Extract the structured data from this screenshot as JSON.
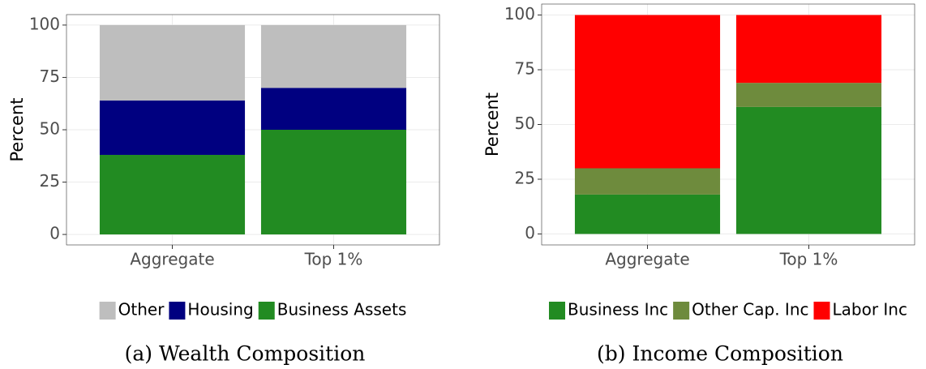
{
  "chart_data": [
    {
      "type": "stacked-bar",
      "caption": "(a) Wealth Composition",
      "ylabel": "Percent",
      "categories": [
        "Aggregate",
        "Top 1%"
      ],
      "series": [
        {
          "name": "Business Assets",
          "color": "#228b22",
          "values": [
            38,
            50
          ]
        },
        {
          "name": "Housing",
          "color": "#000080",
          "values": [
            26,
            20
          ]
        },
        {
          "name": "Other",
          "color": "#bebebe",
          "values": [
            36,
            30
          ]
        }
      ],
      "legend_order": "reverse",
      "ylim": [
        -5,
        105
      ],
      "yticks": [
        0,
        25,
        50,
        75,
        100
      ],
      "grid": true
    },
    {
      "type": "stacked-bar",
      "caption": "(b) Income Composition",
      "ylabel": "Percent",
      "categories": [
        "Aggregate",
        "Top 1%"
      ],
      "series": [
        {
          "name": "Business Inc",
          "color": "#228b22",
          "values": [
            18,
            58
          ]
        },
        {
          "name": "Other Cap. Inc",
          "color": "#6e8b3d",
          "values": [
            12,
            11
          ]
        },
        {
          "name": "Labor Inc",
          "color": "#ff0000",
          "values": [
            70,
            31
          ]
        }
      ],
      "legend_order": "forward",
      "ylim": [
        -5,
        105
      ],
      "yticks": [
        0,
        25,
        50,
        75,
        100
      ],
      "grid": true
    }
  ]
}
